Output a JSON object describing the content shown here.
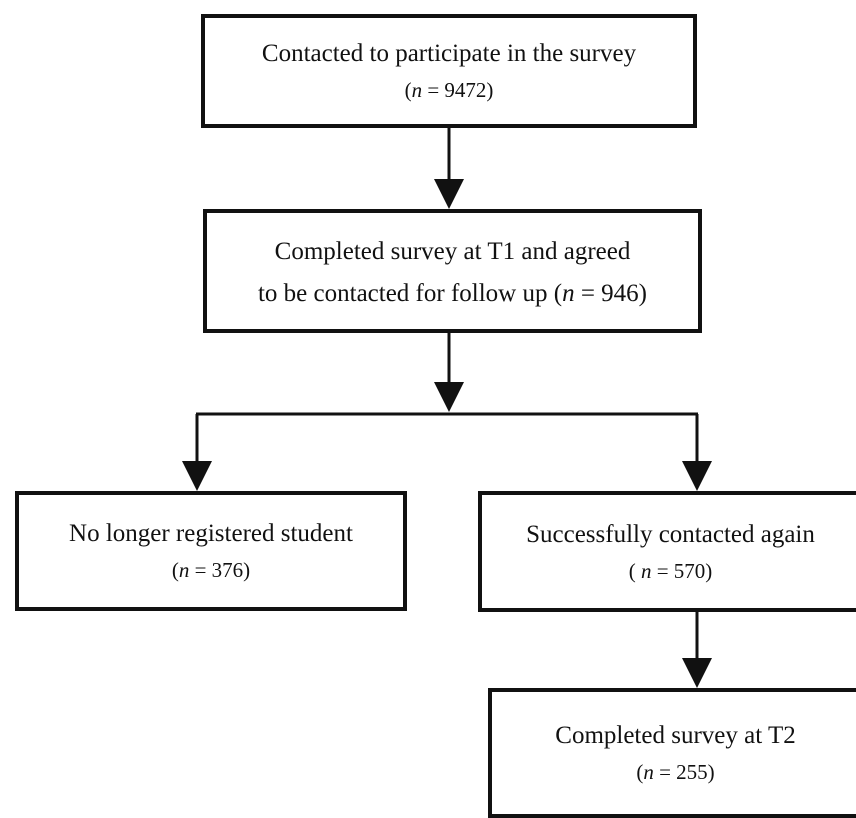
{
  "flowchart": {
    "box1": {
      "line1": "Contacted to participate in the survey",
      "n_symbol": "n",
      "n_rest": " = 9472)",
      "open": "("
    },
    "box2": {
      "line1": "Completed survey at T1 and agreed",
      "line2_pre": "to be contacted for follow up (",
      "n_symbol": "n",
      "n_rest": " = 946)"
    },
    "box3": {
      "line1": "No longer registered student",
      "open": "(",
      "n_symbol": "n",
      "n_rest": " = 376)"
    },
    "box4": {
      "line1": "Successfully contacted again",
      "open": "( ",
      "n_symbol": "n",
      "n_rest": " = 570)"
    },
    "box5": {
      "line1": "Completed survey at T2",
      "open": "(",
      "n_symbol": "n",
      "n_rest": " = 255)"
    }
  }
}
